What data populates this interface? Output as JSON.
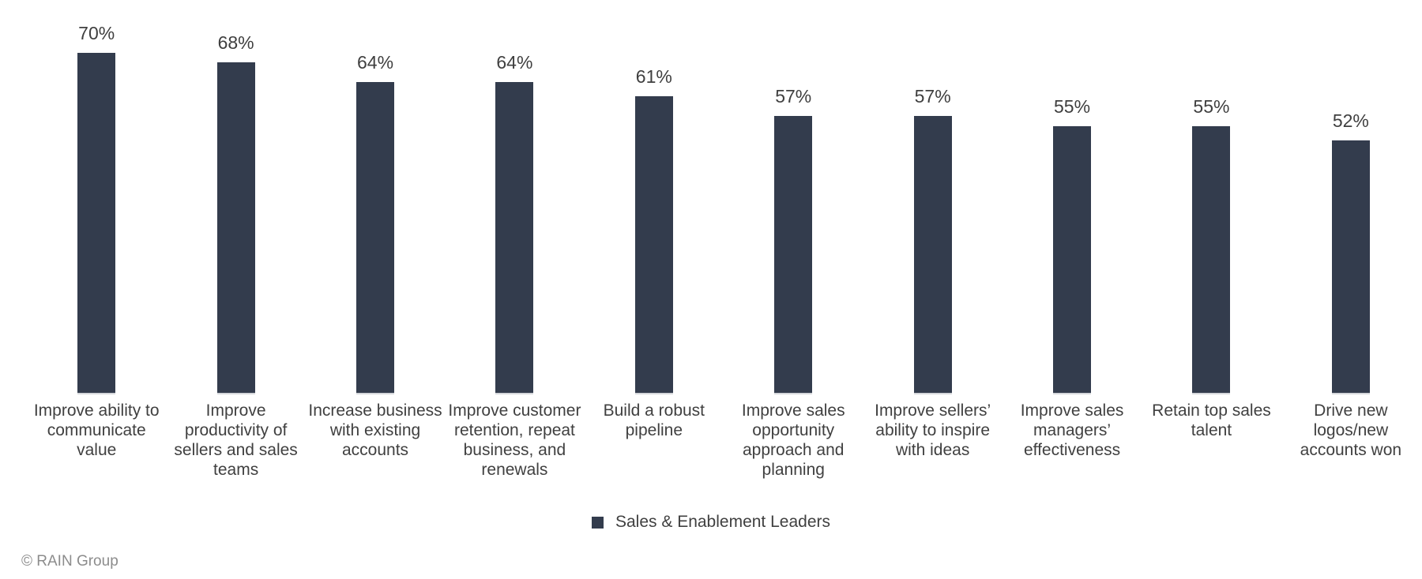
{
  "chart_data": {
    "type": "bar",
    "title": "",
    "categories": [
      "Improve ability to communicate value",
      "Improve productivity of sellers and sales teams",
      "Increase business with existing accounts",
      "Improve customer retention, repeat business, and renewals",
      "Build a robust pipeline",
      "Improve sales opportunity approach and planning",
      "Improve sellers’ ability to inspire with ideas",
      "Improve sales managers’ effectiveness",
      "Retain top sales talent",
      "Drive new logos/new accounts won"
    ],
    "series": [
      {
        "name": "Sales & Enablement Leaders",
        "values": [
          70,
          68,
          64,
          64,
          61,
          57,
          57,
          55,
          55,
          52
        ]
      }
    ],
    "value_suffix": "%",
    "xlabel": "",
    "ylabel": "",
    "ylim": [
      0,
      80
    ],
    "grid": false,
    "axes_shown": false,
    "value_labels": "above-bars",
    "legend_position": "bottom-center"
  },
  "legend": {
    "label": "Sales & Enablement Leaders"
  },
  "footer": {
    "copyright": "© RAIN Group"
  },
  "colors": {
    "bar": "#333C4D",
    "value_label": "#3F3F3F",
    "category_label": "#404040",
    "legend_text": "#404040",
    "footer_text": "#8C8C8C",
    "baseline_tick": "#D5D7DB",
    "background": "#FFFFFF"
  }
}
